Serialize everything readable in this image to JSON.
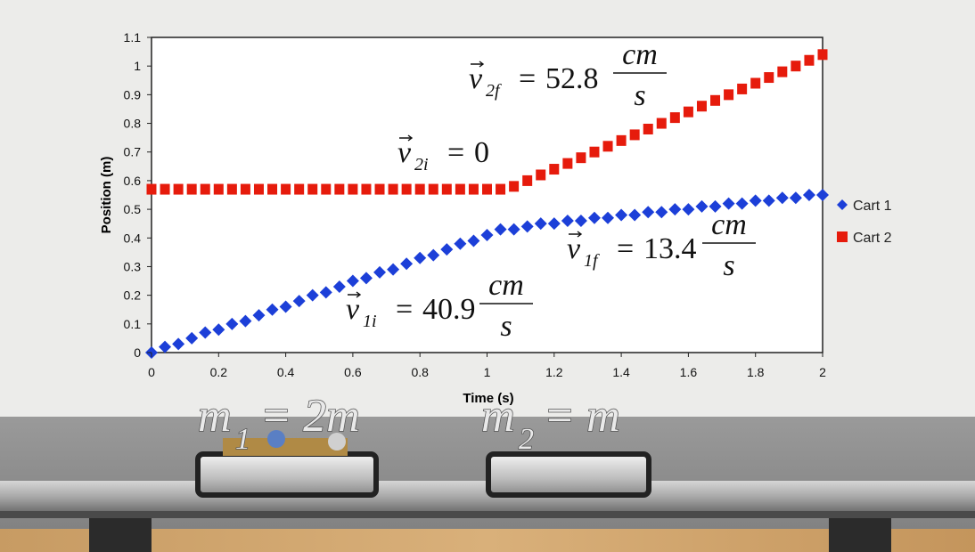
{
  "chart_data": {
    "type": "scatter",
    "x_label": "Time (s)",
    "y_label": "Position (m)",
    "xlim": [
      0,
      2
    ],
    "ylim": [
      0,
      1.1
    ],
    "xticks": [
      0,
      0.2,
      0.4,
      0.6,
      0.8,
      1,
      1.2,
      1.4,
      1.6,
      1.8,
      2
    ],
    "yticks": [
      0,
      0.1,
      0.2,
      0.3,
      0.4,
      0.5,
      0.6,
      0.7,
      0.8,
      0.9,
      1,
      1.1
    ],
    "grid": false,
    "legend": "right",
    "x": [
      0,
      0.04,
      0.08,
      0.12,
      0.16,
      0.2,
      0.24,
      0.28,
      0.32,
      0.36,
      0.4,
      0.44,
      0.48,
      0.52,
      0.56,
      0.6,
      0.64,
      0.68,
      0.72,
      0.76,
      0.8,
      0.84,
      0.88,
      0.92,
      0.96,
      1,
      1.04,
      1.08,
      1.12,
      1.16,
      1.2,
      1.24,
      1.28,
      1.32,
      1.36,
      1.4,
      1.44,
      1.48,
      1.52,
      1.56,
      1.6,
      1.64,
      1.68,
      1.72,
      1.76,
      1.8,
      1.84,
      1.88,
      1.92,
      1.96,
      2
    ],
    "series": [
      {
        "name": "Cart 1",
        "color": "#1c3fd8",
        "marker": "diamond",
        "values": [
          0,
          0.02,
          0.03,
          0.05,
          0.07,
          0.08,
          0.1,
          0.11,
          0.13,
          0.15,
          0.16,
          0.18,
          0.2,
          0.21,
          0.23,
          0.25,
          0.26,
          0.28,
          0.29,
          0.31,
          0.33,
          0.34,
          0.36,
          0.38,
          0.39,
          0.41,
          0.43,
          0.43,
          0.44,
          0.45,
          0.45,
          0.46,
          0.46,
          0.47,
          0.47,
          0.48,
          0.48,
          0.49,
          0.49,
          0.5,
          0.5,
          0.51,
          0.51,
          0.52,
          0.52,
          0.53,
          0.53,
          0.54,
          0.54,
          0.55,
          0.55
        ]
      },
      {
        "name": "Cart 2",
        "color": "#e61b0c",
        "marker": "square",
        "values": [
          0.57,
          0.57,
          0.57,
          0.57,
          0.57,
          0.57,
          0.57,
          0.57,
          0.57,
          0.57,
          0.57,
          0.57,
          0.57,
          0.57,
          0.57,
          0.57,
          0.57,
          0.57,
          0.57,
          0.57,
          0.57,
          0.57,
          0.57,
          0.57,
          0.57,
          0.57,
          0.57,
          0.58,
          0.6,
          0.62,
          0.64,
          0.66,
          0.68,
          0.7,
          0.72,
          0.74,
          0.76,
          0.78,
          0.8,
          0.82,
          0.84,
          0.86,
          0.88,
          0.9,
          0.92,
          0.94,
          0.96,
          0.98,
          1,
          1.02,
          1.04
        ]
      }
    ],
    "annotations": [
      {
        "vector": "v",
        "subscript": "2f",
        "equals": "=",
        "value": 52.8,
        "unit_num": "cm",
        "unit_den": "s"
      },
      {
        "vector": "v",
        "subscript": "2i",
        "equals": "=",
        "value": 0
      },
      {
        "vector": "v",
        "subscript": "1f",
        "equals": "=",
        "value": 13.4,
        "unit_num": "cm",
        "unit_den": "s"
      },
      {
        "vector": "v",
        "subscript": "1i",
        "equals": "=",
        "value": 40.9,
        "unit_num": "cm",
        "unit_den": "s"
      }
    ]
  },
  "scene": {
    "labels": [
      {
        "mass": "m",
        "subscript": "1",
        "rhs": "= 2m"
      },
      {
        "mass": "m",
        "subscript": "2",
        "rhs": "= m"
      }
    ]
  }
}
